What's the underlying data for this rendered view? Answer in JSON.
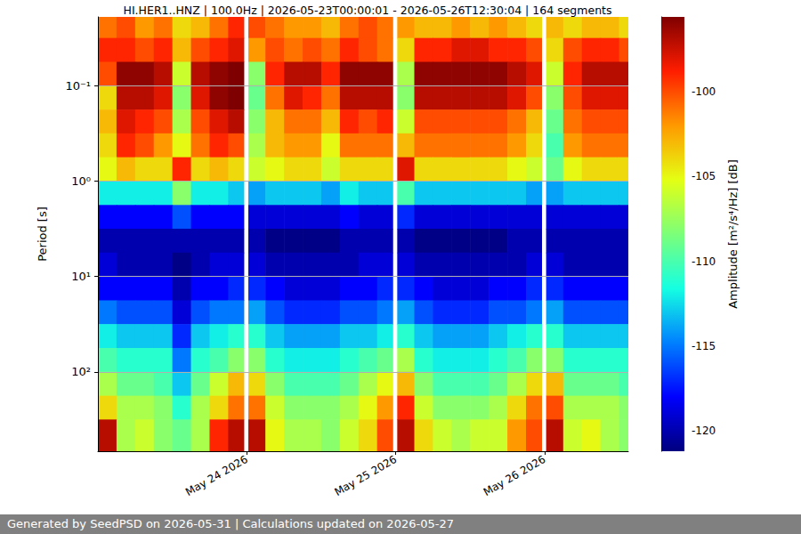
{
  "chart_data": {
    "type": "heatmap",
    "title": "HI.HER1..HNZ | 100.0Hz | 2026-05-23T00:00:01 - 2026-05-26T12:30:04 | 164 segments",
    "footer": "Generated by SeedPSD on 2026-05-31 | Calculations updated on 2026-05-27",
    "y_label": "Period [s]",
    "log": "y",
    "grid": true,
    "xlim": [
      "2026-05-23T00:00:00",
      "2026-05-26T13:30:00"
    ],
    "xticks": [
      {
        "value": "2026-05-24T00:00:00",
        "label": "May 24 2026"
      },
      {
        "value": "2026-05-25T00:00:00",
        "label": "May 25 2026"
      },
      {
        "value": "2026-05-26T00:00:00",
        "label": "May 26 2026"
      }
    ],
    "ylim": [
      0.019,
      680
    ],
    "yticks": [
      {
        "value": 0.1,
        "label": "10⁻¹"
      },
      {
        "value": 1,
        "label": "10⁰"
      },
      {
        "value": 10,
        "label": "10¹"
      },
      {
        "value": 100,
        "label": "10²"
      }
    ],
    "cells": {
      "x_edges": [
        "2026-05-23T00:00:00",
        "2026-05-23T03:00:00",
        "2026-05-23T06:00:00",
        "2026-05-23T09:00:00",
        "2026-05-23T12:00:00",
        "2026-05-23T15:00:00",
        "2026-05-23T18:00:00",
        "2026-05-23T21:00:00",
        "2026-05-23T23:30:00",
        "2026-05-24T00:15:00",
        "2026-05-24T03:00:00",
        "2026-05-24T06:00:00",
        "2026-05-24T09:00:00",
        "2026-05-24T12:00:00",
        "2026-05-24T15:00:00",
        "2026-05-24T18:00:00",
        "2026-05-24T21:00:00",
        "2026-05-24T23:30:00",
        "2026-05-25T00:15:00",
        "2026-05-25T03:00:00",
        "2026-05-25T06:00:00",
        "2026-05-25T09:00:00",
        "2026-05-25T12:00:00",
        "2026-05-25T15:00:00",
        "2026-05-25T18:00:00",
        "2026-05-25T21:00:00",
        "2026-05-25T23:30:00",
        "2026-05-26T00:15:00",
        "2026-05-26T03:00:00",
        "2026-05-26T06:00:00",
        "2026-05-26T09:00:00",
        "2026-05-26T12:00:00",
        "2026-05-26T13:30:00"
      ],
      "y_edges": [
        0.019,
        0.0316,
        0.0562,
        0.1,
        0.178,
        0.316,
        0.562,
        1,
        1.78,
        3.16,
        5.62,
        10,
        17.8,
        31.6,
        56.2,
        100,
        178,
        316,
        680
      ],
      "values": [
        [
          -101,
          -100,
          -102,
          -101,
          -104,
          -103,
          -101,
          -99,
          null,
          -100,
          -101,
          -102,
          -102,
          -103,
          -101,
          -100,
          -101,
          null,
          -102,
          -103,
          -103,
          -102,
          -103,
          -102,
          -103,
          -104,
          null,
          -103,
          -104,
          -103,
          -103,
          -104
        ],
        [
          -99,
          -99,
          -100,
          -99,
          -103,
          -100,
          -99,
          -98,
          null,
          -102,
          -100,
          -101,
          -100,
          -101,
          -99,
          -100,
          -101,
          null,
          -104,
          -99,
          -99,
          -98,
          -98,
          -99,
          -99,
          -100,
          null,
          -104,
          -100,
          -99,
          -99,
          -100
        ],
        [
          -100,
          -96,
          -96,
          -97,
          -106,
          -97,
          -96,
          -95,
          null,
          -108,
          -99,
          -97,
          -97,
          -99,
          -96,
          -96,
          -96,
          null,
          -107,
          -96,
          -96,
          -96,
          -96,
          -96,
          -97,
          -98,
          null,
          -106,
          -99,
          -97,
          -97,
          -97
        ],
        [
          -104,
          -97,
          -97,
          -98,
          -108,
          -98,
          -96,
          -95,
          null,
          -109,
          -101,
          -98,
          -99,
          -101,
          -97,
          -97,
          -97,
          null,
          -108,
          -97,
          -97,
          -97,
          -97,
          -97,
          -98,
          -100,
          null,
          -108,
          -100,
          -98,
          -98,
          -98
        ],
        [
          -103,
          -98,
          -99,
          -100,
          -107,
          -100,
          -98,
          -97,
          null,
          -108,
          -103,
          -101,
          -101,
          -103,
          -99,
          -100,
          -99,
          null,
          -106,
          -100,
          -100,
          -100,
          -100,
          -100,
          -101,
          -103,
          null,
          -109,
          -101,
          -100,
          -100,
          -100
        ],
        [
          -104,
          -99,
          -100,
          -102,
          -105,
          -101,
          -99,
          -100,
          null,
          -107,
          -103,
          -102,
          -102,
          -105,
          -101,
          -101,
          -101,
          null,
          -103,
          -101,
          -101,
          -101,
          -101,
          -101,
          -102,
          -104,
          null,
          -110,
          -102,
          -101,
          -101,
          -101
        ],
        [
          -105,
          -103,
          -104,
          -104,
          -99,
          -104,
          -103,
          -104,
          null,
          -106,
          -105,
          -104,
          -104,
          -106,
          -104,
          -104,
          -104,
          null,
          -98,
          -104,
          -104,
          -104,
          -104,
          -104,
          -105,
          -106,
          null,
          -109,
          -105,
          -104,
          -104,
          -104
        ],
        [
          -112,
          -112,
          -112,
          -112,
          -108,
          -112,
          -112,
          -113,
          null,
          -114,
          -113,
          -113,
          -113,
          -114,
          -112,
          -113,
          -113,
          null,
          -110,
          -113,
          -113,
          -113,
          -113,
          -113,
          -113,
          -114,
          null,
          -114,
          -113,
          -113,
          -113,
          -113
        ],
        [
          -118,
          -118,
          -118,
          -118,
          -116,
          -118,
          -118,
          -118,
          null,
          -119,
          -119,
          -119,
          -119,
          -119,
          -118,
          -119,
          -119,
          null,
          -117,
          -119,
          -119,
          -119,
          -119,
          -119,
          -119,
          -119,
          null,
          -119,
          -119,
          -119,
          -119,
          -119
        ],
        [
          -120,
          -120,
          -120,
          -120,
          -120,
          -120,
          -120,
          -120,
          null,
          -120,
          -121,
          -121,
          -121,
          -121,
          -120,
          -120,
          -120,
          null,
          -120,
          -121,
          -121,
          -121,
          -121,
          -121,
          -120,
          -120,
          null,
          -120,
          -120,
          -120,
          -120,
          -120
        ],
        [
          -119,
          -120,
          -120,
          -120,
          -121,
          -120,
          -119,
          -119,
          null,
          -119,
          -120,
          -120,
          -120,
          -120,
          -120,
          -119,
          -119,
          null,
          -119,
          -120,
          -120,
          -120,
          -120,
          -120,
          -120,
          -119,
          null,
          -119,
          -120,
          -120,
          -120,
          -120
        ],
        [
          -118,
          -118,
          -118,
          -118,
          -120,
          -118,
          -118,
          -117,
          null,
          -117,
          -118,
          -119,
          -119,
          -119,
          -118,
          -118,
          -117,
          null,
          -117,
          -118,
          -119,
          -119,
          -119,
          -118,
          -118,
          -117,
          null,
          -117,
          -118,
          -118,
          -118,
          -118
        ],
        [
          -115,
          -116,
          -116,
          -116,
          -119,
          -116,
          -115,
          -115,
          null,
          -114,
          -116,
          -117,
          -117,
          -117,
          -116,
          -116,
          -115,
          null,
          -114,
          -116,
          -117,
          -117,
          -117,
          -116,
          -116,
          -115,
          null,
          -114,
          -116,
          -116,
          -116,
          -116
        ],
        [
          -112,
          -113,
          -113,
          -113,
          -117,
          -113,
          -112,
          -111,
          null,
          -111,
          -113,
          -114,
          -114,
          -114,
          -113,
          -113,
          -112,
          null,
          -111,
          -113,
          -114,
          -114,
          -114,
          -113,
          -112,
          -111,
          null,
          -111,
          -113,
          -113,
          -113,
          -113
        ],
        [
          -110,
          -111,
          -111,
          -111,
          -115,
          -111,
          -110,
          -108,
          null,
          -108,
          -111,
          -112,
          -112,
          -112,
          -111,
          -110,
          -109,
          null,
          -107,
          -111,
          -112,
          -112,
          -112,
          -111,
          -110,
          -108,
          null,
          -108,
          -111,
          -111,
          -111,
          -111
        ],
        [
          -107,
          -109,
          -109,
          -110,
          -113,
          -109,
          -106,
          -103,
          null,
          -104,
          -108,
          -110,
          -110,
          -110,
          -109,
          -107,
          -105,
          null,
          -103,
          -108,
          -110,
          -110,
          -110,
          -109,
          -107,
          -104,
          null,
          -103,
          -109,
          -109,
          -109,
          -110
        ],
        [
          -104,
          -107,
          -107,
          -108,
          -111,
          -107,
          -104,
          -101,
          null,
          -101,
          -106,
          -108,
          -108,
          -108,
          -107,
          -105,
          -102,
          null,
          -99,
          -106,
          -108,
          -108,
          -108,
          -107,
          -104,
          -101,
          null,
          -100,
          -107,
          -107,
          -107,
          -108
        ],
        [
          -97,
          -107,
          -106,
          -108,
          -109,
          -107,
          -99,
          -97,
          null,
          -97,
          -105,
          -107,
          -107,
          -108,
          -106,
          -104,
          -100,
          null,
          -97,
          -104,
          -106,
          -107,
          -106,
          -106,
          -102,
          -100,
          null,
          -97,
          -106,
          -105,
          -107,
          -108
        ]
      ]
    },
    "colorbar": {
      "label": "Amplitude [m²/s⁴/Hz] [dB]",
      "range": [
        -121.2,
        -95.6
      ],
      "ticks": [
        -120,
        -115,
        -110,
        -105,
        -100
      ]
    }
  }
}
